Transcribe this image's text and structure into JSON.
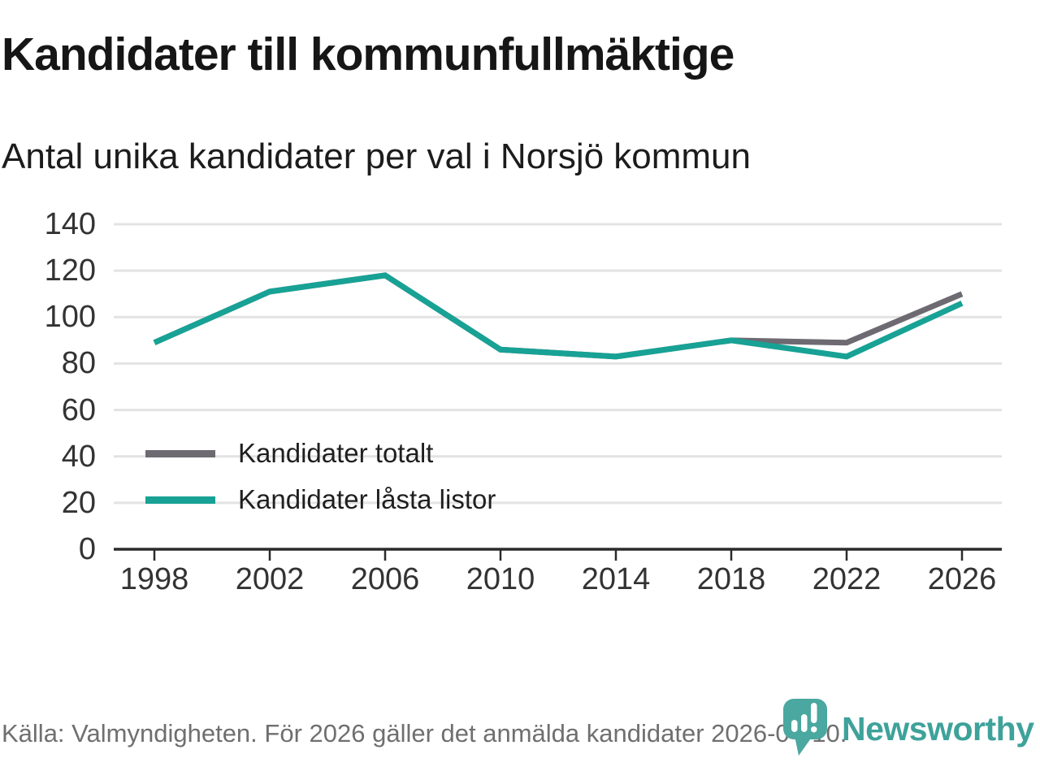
{
  "header": {
    "title": "Kandidater till kommunfullmäktige",
    "subtitle": "Antal unika kandidater per val i Norsjö kommun"
  },
  "chart_data": {
    "type": "line",
    "x": [
      1998,
      2002,
      2006,
      2010,
      2014,
      2018,
      2022,
      2026
    ],
    "series": [
      {
        "name": "Kandidater totalt",
        "color": "#6d6a72",
        "values": [
          89,
          111,
          118,
          86,
          83,
          90,
          89,
          110
        ]
      },
      {
        "name": "Kandidater låsta listor",
        "color": "#17a295",
        "values": [
          89,
          111,
          118,
          86,
          83,
          90,
          83,
          106
        ]
      }
    ],
    "title": "Kandidater till kommunfullmäktige",
    "subtitle": "Antal unika kandidater per val i Norsjö kommun",
    "xlabel": "",
    "ylabel": "",
    "ylim": [
      0,
      140
    ],
    "yticks": [
      0,
      20,
      40,
      60,
      80,
      100,
      120,
      140
    ],
    "xticks": [
      "1998",
      "2002",
      "2006",
      "2010",
      "2014",
      "2018",
      "2022",
      "2026"
    ],
    "grid": true,
    "legend_position": "inside-lower-left"
  },
  "legend": {
    "items": [
      {
        "label": "Kandidater totalt",
        "color": "#6d6a72"
      },
      {
        "label": "Kandidater låsta listor",
        "color": "#17a295"
      }
    ]
  },
  "footer": {
    "source": "Källa: Valmyndigheten. För 2026 gäller det anmälda kandidater 2026-04-10.",
    "brand": "Newsworthy"
  },
  "colors": {
    "accent_teal": "#17a295",
    "series_gray": "#6d6a72",
    "grid": "#e3e3e3",
    "axis": "#2b2b2b",
    "tick_label": "#333333",
    "title_text": "#161616",
    "footer_text": "#6f6f6f",
    "logo_teal": "#4aa8a0",
    "logo_wordmark": "#3ea29a"
  }
}
